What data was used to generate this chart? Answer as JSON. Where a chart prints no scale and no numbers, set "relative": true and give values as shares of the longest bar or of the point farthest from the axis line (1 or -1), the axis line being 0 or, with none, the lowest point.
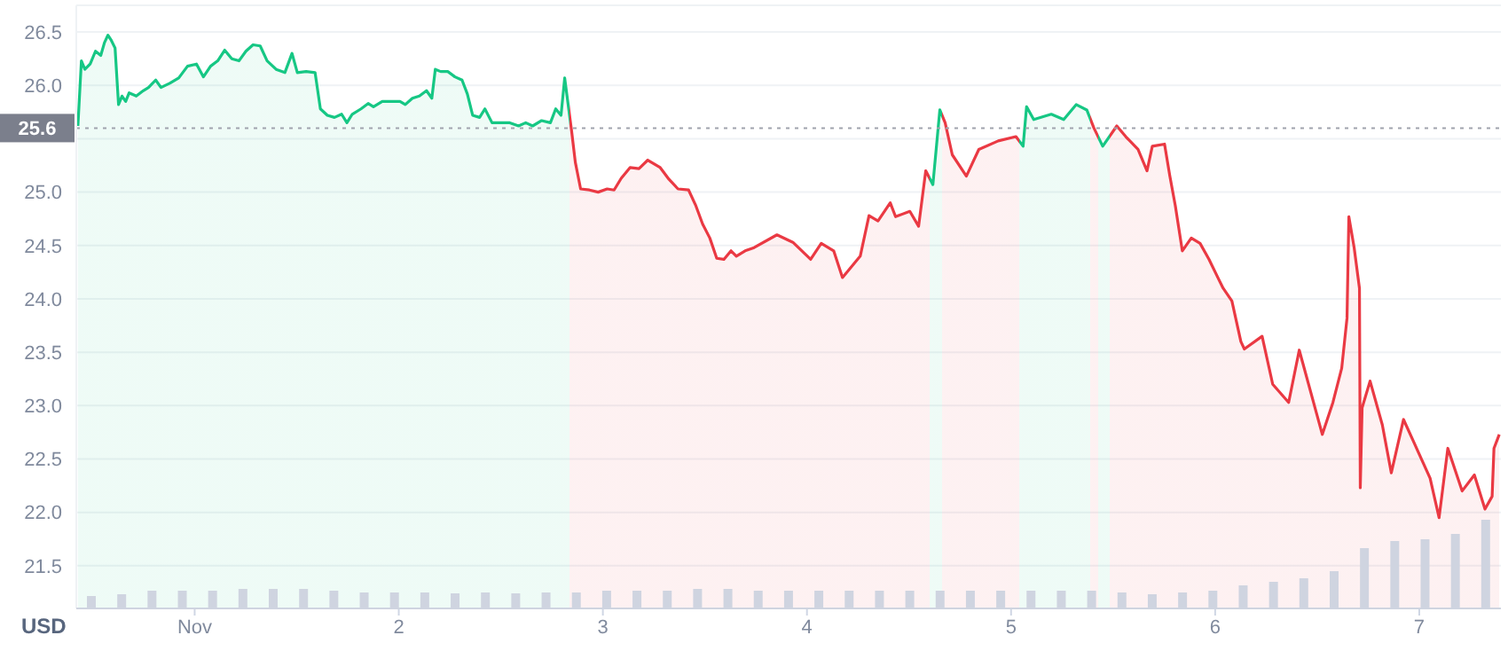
{
  "chart_data": [
    {
      "type": "area",
      "ylabel": "USD",
      "xlim": [
        0.42,
        7.4
      ],
      "ylim": [
        21.1,
        26.75
      ],
      "xticks": [
        {
          "value": 1,
          "label": "Nov"
        },
        2,
        3,
        4,
        5,
        6,
        7
      ],
      "yticks": [
        21.5,
        {
          "value": 22,
          "label": "22.0"
        },
        22.5,
        {
          "value": 23,
          "label": "23.0"
        },
        23.5,
        {
          "value": 24,
          "label": "24.0"
        },
        24.5,
        {
          "value": 25,
          "label": "25.0"
        },
        {
          "value": 25.5,
          "label": null
        },
        {
          "value": 26,
          "label": "26.0"
        },
        26.5
      ],
      "grid": "y",
      "ref_lines": [
        {
          "axis": "y",
          "value": 25.6,
          "label": "25.6",
          "color": "#a0a3ad",
          "line_style": "dotted"
        }
      ],
      "series": [
        {
          "colors": [
            "#16c784",
            "#16c784",
            "#16c784",
            "#16c784",
            "#16c784",
            "#16c784",
            "#16c784",
            "#16c784",
            "#16c784",
            "#16c784",
            "#16c784",
            "#16c784",
            "#16c784",
            "#16c784",
            "#16c784",
            "#16c784",
            "#16c784",
            "#16c784",
            "#16c784",
            "#16c784",
            "#16c784",
            "#16c784",
            "#16c784",
            "#16c784",
            "#16c784",
            "#16c784",
            "#16c784",
            "#16c784",
            "#16c784",
            "#16c784",
            "#16c784",
            "#16c784",
            "#16c784",
            "#16c784",
            "#16c784",
            "#16c784",
            "#16c784",
            "#16c784",
            "#16c784",
            "#16c784",
            "#16c784",
            "#16c784",
            "#16c784",
            "#16c784",
            "#16c784",
            "#16c784",
            "#16c784",
            "#16c784",
            "#16c784",
            "#16c784",
            "#16c784",
            "#16c784",
            "#16c784",
            "#16c784",
            "#16c784",
            "#16c784",
            "#16c784",
            "#16c784",
            "#16c784",
            "#16c784",
            "#16c784",
            "#16c784",
            "#16c784",
            "#16c784",
            "#16c784",
            "#16c784",
            "#16c784",
            "#16c784",
            "#16c784",
            "#16c784",
            "#16c784",
            "#16c784",
            "#16c784",
            "#16c784",
            "#16c784",
            "#16c784",
            "#16c784",
            "#ea3943",
            "#ea3943",
            "#ea3943",
            "#ea3943",
            "#ea3943",
            "#ea3943",
            "#ea3943",
            "#ea3943",
            "#ea3943",
            "#ea3943",
            "#ea3943",
            "#ea3943",
            "#ea3943",
            "#ea3943",
            "#ea3943",
            "#ea3943",
            "#ea3943",
            "#ea3943",
            "#ea3943",
            "#ea3943",
            "#ea3943",
            "#ea3943",
            "#ea3943",
            "#ea3943",
            "#ea3943",
            "#ea3943",
            "#ea3943",
            "#ea3943",
            "#ea3943",
            "#ea3943",
            "#ea3943",
            "#ea3943",
            "#ea3943",
            "#ea3943",
            "#ea3943",
            "#ea3943",
            "#ea3943",
            "#ea3943",
            "#ea3943",
            "#16c784",
            "#16c784",
            "#ea3943",
            "#ea3943",
            "#ea3943",
            "#ea3943",
            "#ea3943",
            "#ea3943",
            "#16c784",
            "#16c784",
            "#16c784",
            "#16c784",
            "#16c784",
            "#16c784",
            "#16c784",
            "#ea3943",
            "#16c784",
            "#ea3943",
            "#ea3943",
            "#ea3943",
            "#ea3943",
            "#ea3943",
            "#ea3943",
            "#ea3943",
            "#ea3943",
            "#ea3943",
            "#ea3943",
            "#ea3943",
            "#ea3943",
            "#ea3943",
            "#ea3943",
            "#ea3943",
            "#ea3943",
            "#ea3943",
            "#ea3943",
            "#ea3943",
            "#ea3943",
            "#ea3943",
            "#ea3943",
            "#ea3943",
            "#ea3943",
            "#ea3943",
            "#ea3943",
            "#ea3943",
            "#ea3943",
            "#ea3943",
            "#ea3943",
            "#ea3943",
            "#ea3943",
            "#ea3943",
            "#ea3943",
            "#ea3943",
            "#ea3943",
            "#ea3943",
            "#ea3943",
            "#ea3943",
            "#ea3943",
            "#ea3943",
            "#ea3943",
            "#ea3943",
            "#ea3943"
          ],
          "x": [
            0.428,
            0.445,
            0.462,
            0.488,
            0.514,
            0.54,
            0.558,
            0.575,
            0.592,
            0.61,
            0.627,
            0.644,
            0.662,
            0.679,
            0.714,
            0.748,
            0.774,
            0.809,
            0.835,
            0.878,
            0.922,
            0.965,
            1.009,
            1.043,
            1.078,
            1.113,
            1.147,
            1.182,
            1.217,
            1.251,
            1.286,
            1.321,
            1.355,
            1.399,
            1.442,
            1.477,
            1.503,
            1.546,
            1.59,
            1.616,
            1.65,
            1.685,
            1.72,
            1.746,
            1.772,
            1.815,
            1.85,
            1.876,
            1.919,
            1.963,
            2.006,
            2.032,
            2.067,
            2.101,
            2.136,
            2.162,
            2.179,
            2.205,
            2.24,
            2.275,
            2.31,
            2.336,
            2.362,
            2.396,
            2.422,
            2.457,
            2.5,
            2.544,
            2.587,
            2.622,
            2.656,
            2.7,
            2.743,
            2.769,
            2.795,
            2.813,
            2.83,
            2.847,
            2.865,
            2.891,
            2.934,
            2.977,
            3.021,
            3.055,
            3.09,
            3.133,
            3.177,
            3.22,
            3.246,
            3.281,
            3.324,
            3.368,
            3.42,
            3.454,
            3.489,
            3.524,
            3.558,
            3.593,
            3.628,
            3.654,
            3.697,
            3.741,
            3.853,
            3.931,
            4.018,
            4.07,
            4.131,
            4.174,
            4.261,
            4.304,
            4.348,
            4.408,
            4.434,
            4.504,
            4.547,
            4.582,
            4.617,
            4.651,
            4.677,
            4.712,
            4.781,
            4.842,
            4.937,
            5.024,
            5.059,
            5.076,
            5.111,
            5.197,
            5.258,
            5.319,
            5.371,
            5.406,
            5.449,
            5.518,
            5.562,
            5.622,
            5.666,
            5.692,
            5.752,
            5.778,
            5.805,
            5.839,
            5.883,
            5.926,
            5.97,
            6.013,
            6.039,
            6.082,
            6.126,
            6.143,
            6.23,
            6.282,
            6.36,
            6.412,
            6.525,
            6.577,
            6.62,
            6.646,
            6.655,
            6.681,
            6.707,
            6.711,
            6.72,
            6.759,
            6.819,
            6.863,
            6.923,
            6.975,
            7.053,
            7.097,
            7.14,
            7.21,
            7.27,
            7.322,
            7.357,
            7.366,
            7.392
          ],
          "values": [
            25.62,
            26.23,
            26.15,
            26.2,
            26.32,
            26.28,
            26.4,
            26.47,
            26.42,
            26.35,
            25.82,
            25.9,
            25.85,
            25.93,
            25.9,
            25.95,
            25.98,
            26.05,
            25.98,
            26.02,
            26.07,
            26.18,
            26.2,
            26.08,
            26.18,
            26.23,
            26.33,
            26.25,
            26.23,
            26.32,
            26.38,
            26.37,
            26.23,
            26.15,
            26.12,
            26.3,
            26.12,
            26.13,
            26.12,
            25.78,
            25.72,
            25.7,
            25.73,
            25.65,
            25.73,
            25.78,
            25.83,
            25.8,
            25.85,
            25.85,
            25.85,
            25.82,
            25.88,
            25.9,
            25.95,
            25.88,
            26.15,
            26.13,
            26.13,
            26.08,
            26.05,
            25.92,
            25.72,
            25.7,
            25.78,
            25.65,
            25.65,
            25.65,
            25.62,
            25.65,
            25.62,
            25.67,
            25.65,
            25.78,
            25.72,
            26.07,
            25.82,
            25.57,
            25.28,
            25.03,
            25.02,
            25,
            25.03,
            25.02,
            25.13,
            25.23,
            25.22,
            25.3,
            25.27,
            25.23,
            25.12,
            25.03,
            25.02,
            24.88,
            24.7,
            24.57,
            24.38,
            24.37,
            24.45,
            24.4,
            24.45,
            24.48,
            24.6,
            24.53,
            24.37,
            24.52,
            24.45,
            24.2,
            24.4,
            24.78,
            24.73,
            24.9,
            24.77,
            24.82,
            24.68,
            25.2,
            25.07,
            25.77,
            25.65,
            25.35,
            25.15,
            25.4,
            25.48,
            25.52,
            25.43,
            25.8,
            25.68,
            25.73,
            25.68,
            25.82,
            25.77,
            25.6,
            25.43,
            25.62,
            25.52,
            25.4,
            25.2,
            25.43,
            25.45,
            25.15,
            24.87,
            24.45,
            24.57,
            24.52,
            24.37,
            24.2,
            24.1,
            23.98,
            23.6,
            23.53,
            23.65,
            23.2,
            23.03,
            23.52,
            22.73,
            23.03,
            23.35,
            23.82,
            24.77,
            24.48,
            24.1,
            22.23,
            22.98,
            23.23,
            22.82,
            22.37,
            22.87,
            22.65,
            22.32,
            21.95,
            22.6,
            22.2,
            22.35,
            22.03,
            22.15,
            22.6,
            22.73
          ]
        }
      ]
    },
    {
      "type": "bar",
      "relative": true,
      "categories": [
        null,
        null,
        null,
        null,
        null,
        null,
        null,
        null,
        null,
        null,
        null,
        null,
        null,
        null,
        null,
        null,
        null,
        null,
        null,
        null,
        null,
        null,
        null,
        null,
        null,
        null,
        null,
        null,
        null,
        null,
        null,
        null,
        null,
        null,
        null,
        null,
        null,
        null,
        null,
        null,
        null,
        null,
        null,
        null,
        null,
        null,
        null
      ],
      "series": [
        {
          "color": "#cfd4e0",
          "values": [
            0.14,
            0.16,
            0.2,
            0.2,
            0.2,
            0.22,
            0.22,
            0.22,
            0.2,
            0.18,
            0.18,
            0.18,
            0.17,
            0.18,
            0.17,
            0.18,
            0.18,
            0.2,
            0.2,
            0.2,
            0.22,
            0.22,
            0.2,
            0.2,
            0.2,
            0.2,
            0.2,
            0.2,
            0.2,
            0.2,
            0.2,
            0.2,
            0.2,
            0.2,
            0.18,
            0.16,
            0.18,
            0.2,
            0.26,
            0.3,
            0.34,
            0.42,
            0.68,
            0.76,
            0.78,
            0.84,
            1
          ]
        }
      ]
    }
  ]
}
